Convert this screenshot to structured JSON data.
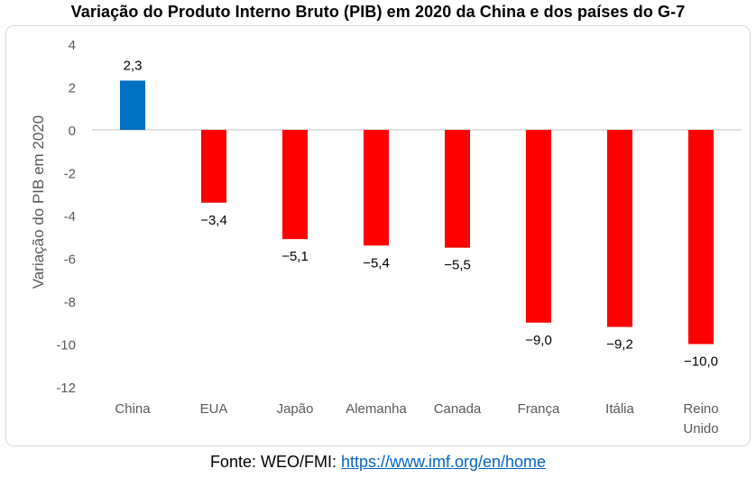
{
  "chart_data": {
    "type": "bar",
    "title": "Variação do Produto Interno Bruto (PIB) em 2020 da China e dos países do G-7",
    "ylabel": "Variação do PIB em 2020",
    "xlabel": "",
    "categories": [
      [
        "China"
      ],
      [
        "EUA"
      ],
      [
        "Japão"
      ],
      [
        "Alemanha"
      ],
      [
        "Canada"
      ],
      [
        "França"
      ],
      [
        "Itália"
      ],
      [
        "Reino",
        "Unido"
      ]
    ],
    "values": [
      2.3,
      -3.4,
      -5.1,
      -5.4,
      -5.5,
      -9.0,
      -9.2,
      -10.0
    ],
    "value_labels": [
      "2,3",
      "−3,4",
      "−5,1",
      "−5,4",
      "−5,5",
      "−9,0",
      "−9,2",
      "−10,0"
    ],
    "ylim": [
      -12,
      4
    ],
    "yticks": [
      4,
      2,
      0,
      -2,
      -4,
      -6,
      -8,
      -10,
      -12
    ],
    "ytick_labels": [
      "4",
      "2",
      "0",
      "-2",
      "-4",
      "-6",
      "-8",
      "-10",
      "-12"
    ],
    "colors": {
      "positive": "#0070c0",
      "negative": "#ff0000",
      "axis": "#bfbfbf",
      "tick_text": "#595959"
    },
    "grid": false,
    "legend": "none"
  },
  "source": {
    "prefix": "Fonte: WEO/FMI: ",
    "link_text": "https://www.imf.org/en/home"
  }
}
